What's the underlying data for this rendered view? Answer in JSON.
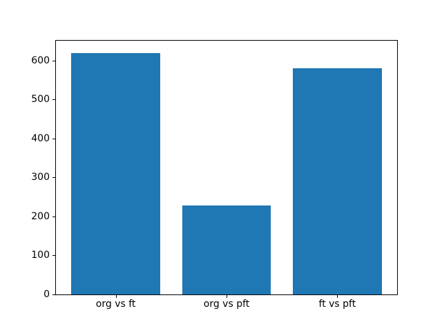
{
  "chart_data": {
    "type": "bar",
    "categories": [
      "org vs ft",
      "org vs pft",
      "ft vs pft"
    ],
    "values": [
      620,
      228,
      580
    ],
    "title": "",
    "xlabel": "",
    "ylabel": "",
    "ylim": [
      0,
      651
    ],
    "yticks": [
      0,
      100,
      200,
      300,
      400,
      500,
      600
    ],
    "bar_color": "#1f77b4",
    "axis_color": "#000000",
    "background_color": "#ffffff",
    "grid": false,
    "legend": "none"
  }
}
